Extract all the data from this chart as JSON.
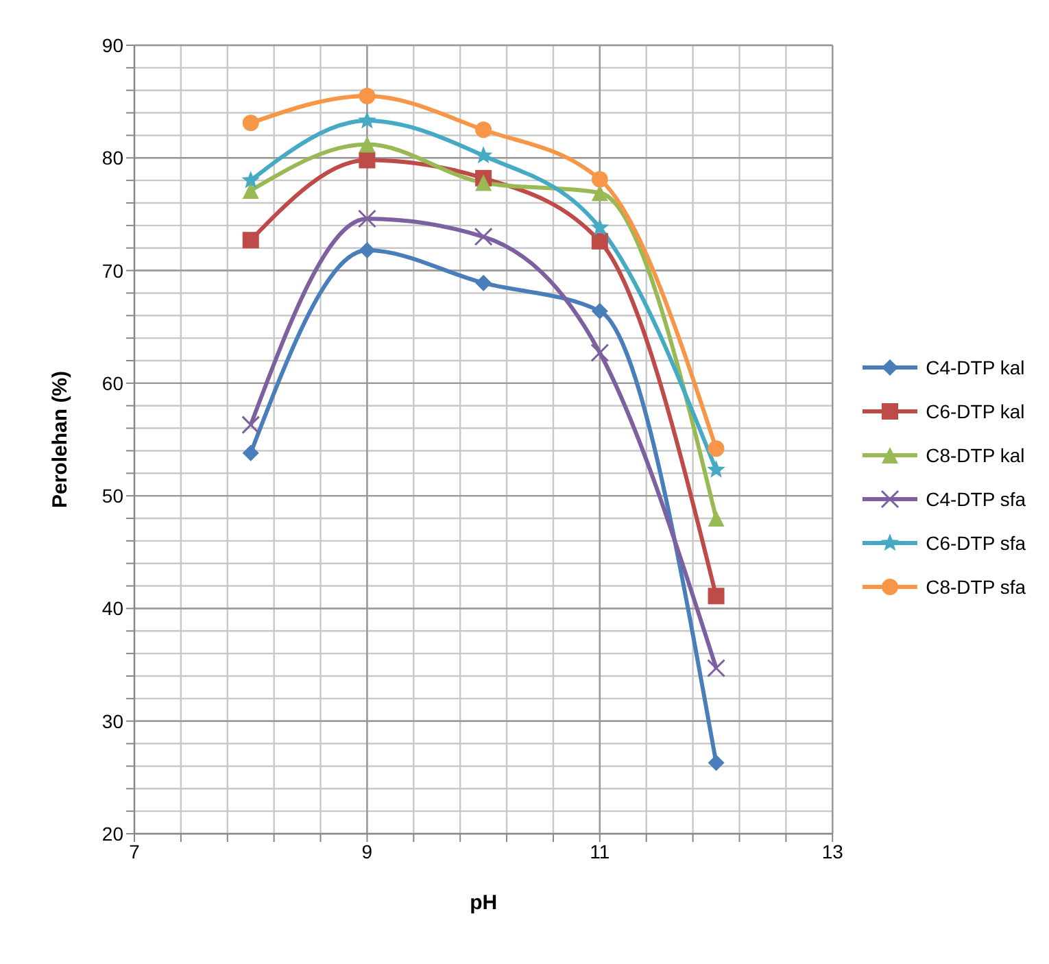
{
  "chart_data": {
    "type": "line",
    "xlabel": "pH",
    "ylabel": "Perolehan  (%)",
    "x": [
      8,
      9,
      10,
      11,
      12
    ],
    "series": [
      {
        "name": "C4-DTP kal",
        "color": "#4a7ebb",
        "marker": "diamond",
        "values": [
          53.8,
          71.8,
          68.9,
          66.4,
          26.3
        ]
      },
      {
        "name": "C6-DTP kal",
        "color": "#be4b48",
        "marker": "square",
        "values": [
          72.7,
          79.8,
          78.2,
          72.6,
          41.1
        ]
      },
      {
        "name": "C8-DTP kal",
        "color": "#98b954",
        "marker": "triangle",
        "values": [
          77.1,
          81.2,
          77.8,
          76.9,
          48.0
        ]
      },
      {
        "name": "C4-DTP sfa",
        "color": "#7d60a0",
        "marker": "cross",
        "values": [
          56.3,
          74.6,
          73.0,
          62.7,
          34.7
        ]
      },
      {
        "name": "C6-DTP sfa",
        "color": "#46aac5",
        "marker": "star",
        "values": [
          78.0,
          83.3,
          80.2,
          73.8,
          52.3
        ]
      },
      {
        "name": "C8-DTP sfa",
        "color": "#f79646",
        "marker": "circle",
        "values": [
          83.1,
          85.5,
          82.5,
          78.1,
          54.2
        ]
      }
    ],
    "xlim": [
      7,
      13
    ],
    "xticks": [
      7,
      {
        "value": 7.4,
        "label": null
      },
      {
        "value": 7.8,
        "label": null
      },
      {
        "value": 8.2,
        "label": null
      },
      {
        "value": 8.6,
        "label": null
      },
      9,
      {
        "value": 9.4,
        "label": null
      },
      {
        "value": 9.8,
        "label": null
      },
      {
        "value": 10.2,
        "label": null
      },
      {
        "value": 10.6,
        "label": null
      },
      11,
      {
        "value": 11.4,
        "label": null
      },
      {
        "value": 11.8,
        "label": null
      },
      {
        "value": 12.2,
        "label": null
      },
      {
        "value": 12.6,
        "label": null
      },
      13
    ],
    "ylim": [
      20,
      90
    ],
    "yticks": [
      20,
      {
        "value": 22,
        "label": null
      },
      {
        "value": 24,
        "label": null
      },
      {
        "value": 26,
        "label": null
      },
      {
        "value": 28,
        "label": null
      },
      30,
      {
        "value": 32,
        "label": null
      },
      {
        "value": 34,
        "label": null
      },
      {
        "value": 36,
        "label": null
      },
      {
        "value": 38,
        "label": null
      },
      40,
      {
        "value": 42,
        "label": null
      },
      {
        "value": 44,
        "label": null
      },
      {
        "value": 46,
        "label": null
      },
      {
        "value": 48,
        "label": null
      },
      50,
      {
        "value": 52,
        "label": null
      },
      {
        "value": 54,
        "label": null
      },
      {
        "value": 56,
        "label": null
      },
      {
        "value": 58,
        "label": null
      },
      60,
      {
        "value": 62,
        "label": null
      },
      {
        "value": 64,
        "label": null
      },
      {
        "value": 66,
        "label": null
      },
      {
        "value": 68,
        "label": null
      },
      70,
      {
        "value": 72,
        "label": null
      },
      {
        "value": 74,
        "label": null
      },
      {
        "value": 76,
        "label": null
      },
      {
        "value": 78,
        "label": null
      },
      80,
      {
        "value": 82,
        "label": null
      },
      {
        "value": 84,
        "label": null
      },
      {
        "value": 86,
        "label": null
      },
      {
        "value": 88,
        "label": null
      },
      90
    ],
    "grid": true,
    "legend": "right",
    "line_style": "solid"
  }
}
